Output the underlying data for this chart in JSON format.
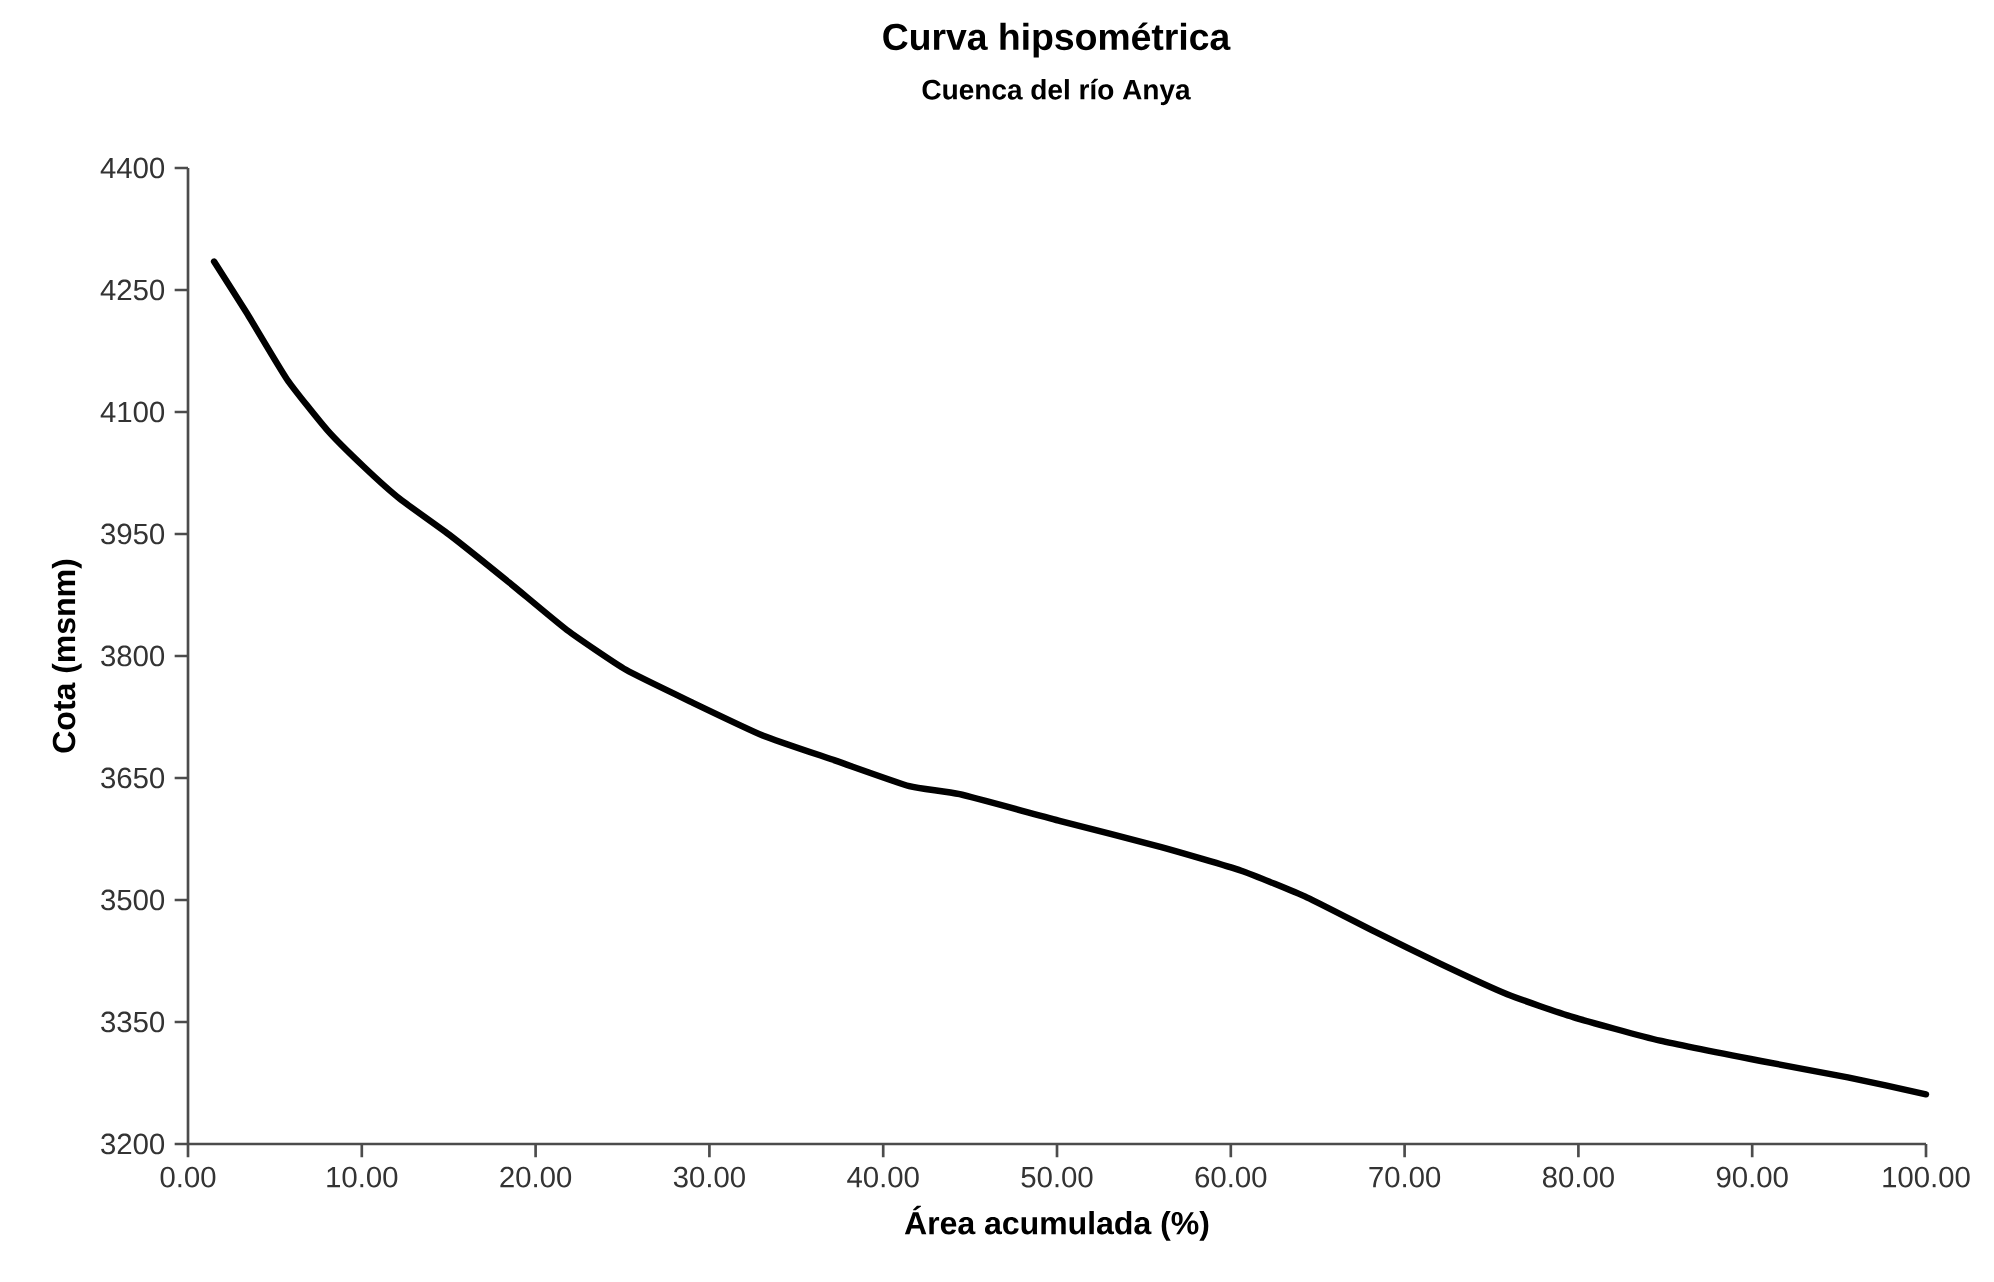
{
  "chart_data": {
    "type": "line",
    "title": "Curva hipsométrica",
    "subtitle": "Cuenca del río Anya",
    "xlabel": "Área acumulada (%)",
    "ylabel": "Cota (msnm)",
    "xlim": [
      0,
      100
    ],
    "ylim": [
      3200,
      4400
    ],
    "xticks": [
      {
        "value": 0,
        "label": "0.00"
      },
      {
        "value": 10,
        "label": "10.00"
      },
      {
        "value": 20,
        "label": "20.00"
      },
      {
        "value": 30,
        "label": "30.00"
      },
      {
        "value": 40,
        "label": "40.00"
      },
      {
        "value": 50,
        "label": "50.00"
      },
      {
        "value": 60,
        "label": "60.00"
      },
      {
        "value": 70,
        "label": "70.00"
      },
      {
        "value": 80,
        "label": "80.00"
      },
      {
        "value": 90,
        "label": "90.00"
      },
      {
        "value": 100,
        "label": "100.00"
      }
    ],
    "yticks": [
      3200,
      3350,
      3500,
      3650,
      3800,
      3950,
      4100,
      4250,
      4400
    ],
    "series": [
      {
        "color": "#000000",
        "x": [
          1.5,
          3.4,
          5.7,
          8.0,
          10.1,
          12.2,
          15.1,
          18.5,
          21.8,
          25.2,
          29.0,
          33.1,
          37.3,
          41.5,
          44.4,
          50.2,
          56.0,
          60.6,
          64.4,
          68.2,
          72.1,
          75.9,
          79.7,
          84.7,
          90.5,
          95.5,
          100
        ],
        "values": [
          4285,
          4221,
          4140,
          4078,
          4033,
          3993,
          3948,
          3890,
          3832,
          3783,
          3743,
          3702,
          3671,
          3640,
          3630,
          3597,
          3565,
          3536,
          3503,
          3462,
          3421,
          3384,
          3356,
          3327,
          3302,
          3282,
          3261
        ]
      }
    ]
  }
}
